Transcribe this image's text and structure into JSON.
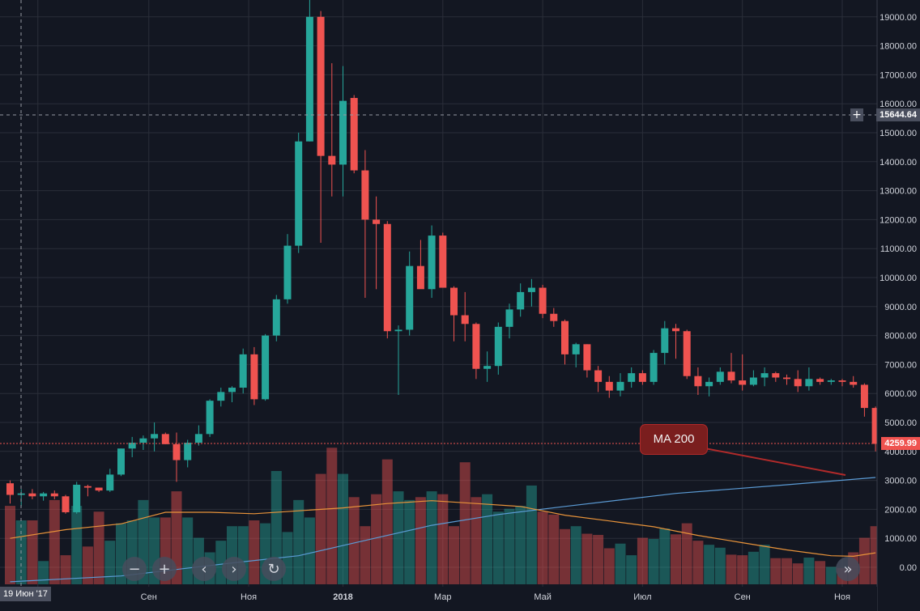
{
  "chart_data": {
    "type": "candlestick",
    "interval": "weekly",
    "x_ticks": [
      "Июл",
      "Сен",
      "Ноя",
      "2018",
      "Мар",
      "Май",
      "Июл",
      "Сен",
      "Ноя"
    ],
    "y_ticks": [
      "0.00",
      "1000.00",
      "2000.00",
      "3000.00",
      "4000.00",
      "5000.00",
      "6000.00",
      "7000.00",
      "8000.00",
      "9000.00",
      "10000.00",
      "11000.00",
      "12000.00",
      "13000.00",
      "14000.00",
      "15000.00",
      "16000.00",
      "17000.00",
      "18000.00",
      "19000.00"
    ],
    "ylim": [
      -750,
      20400
    ],
    "candles": [
      [
        2900,
        3000,
        2200,
        2500
      ],
      [
        2500,
        2700,
        2100,
        2550
      ],
      [
        2550,
        2700,
        2350,
        2450
      ],
      [
        2450,
        2600,
        2300,
        2550
      ],
      [
        2550,
        2650,
        2350,
        2450
      ],
      [
        2450,
        2500,
        1850,
        1900
      ],
      [
        1900,
        2950,
        1850,
        2850
      ],
      [
        2800,
        2850,
        2450,
        2750
      ],
      [
        2750,
        2750,
        2600,
        2650
      ],
      [
        2650,
        3400,
        2600,
        3200
      ],
      [
        3200,
        4100,
        3150,
        4100
      ],
      [
        4100,
        4500,
        3800,
        4300
      ],
      [
        4300,
        4550,
        4050,
        4450
      ],
      [
        4450,
        5000,
        4000,
        4600
      ],
      [
        4600,
        4650,
        4250,
        4250
      ],
      [
        4250,
        4650,
        2950,
        3700
      ],
      [
        3700,
        4400,
        3450,
        4300
      ],
      [
        4300,
        4900,
        4200,
        4600
      ],
      [
        4600,
        5800,
        4500,
        5750
      ],
      [
        5750,
        6200,
        5550,
        6050
      ],
      [
        6050,
        6250,
        5700,
        6200
      ],
      [
        6200,
        7550,
        6000,
        7350
      ],
      [
        7350,
        7600,
        5600,
        5800
      ],
      [
        5800,
        8050,
        5750,
        8000
      ],
      [
        8000,
        9400,
        7800,
        9250
      ],
      [
        9250,
        11500,
        9100,
        11100
      ],
      [
        11100,
        15000,
        10850,
        14700
      ],
      [
        14700,
        19750,
        14700,
        19000
      ],
      [
        19000,
        19200,
        11200,
        14200
      ],
      [
        14200,
        17400,
        12800,
        13900
      ],
      [
        13900,
        17300,
        12800,
        16100
      ],
      [
        16200,
        16300,
        13600,
        13700
      ],
      [
        13700,
        14400,
        9300,
        12000
      ],
      [
        12000,
        12800,
        9600,
        11850
      ],
      [
        11850,
        11950,
        7900,
        8150
      ],
      [
        8150,
        8350,
        5950,
        8200
      ],
      [
        8200,
        10900,
        8000,
        10400
      ],
      [
        10400,
        11300,
        9700,
        9600
      ],
      [
        9600,
        11800,
        9300,
        11450
      ],
      [
        11450,
        11550,
        9700,
        9650
      ],
      [
        9650,
        9700,
        7800,
        8700
      ],
      [
        8700,
        9500,
        7800,
        8400
      ],
      [
        8400,
        8450,
        6500,
        6850
      ],
      [
        6850,
        7450,
        6400,
        6950
      ],
      [
        6950,
        8450,
        6650,
        8300
      ],
      [
        8300,
        9100,
        7900,
        8900
      ],
      [
        8900,
        9800,
        8650,
        9500
      ],
      [
        9500,
        9950,
        9000,
        9650
      ],
      [
        9650,
        9750,
        8600,
        8750
      ],
      [
        8750,
        8950,
        8300,
        8500
      ],
      [
        8500,
        8550,
        7000,
        7350
      ],
      [
        7350,
        7750,
        6900,
        7700
      ],
      [
        7700,
        7700,
        6550,
        6800
      ],
      [
        6800,
        6950,
        6050,
        6400
      ],
      [
        6400,
        6600,
        5850,
        6100
      ],
      [
        6100,
        6700,
        5900,
        6400
      ],
      [
        6400,
        6900,
        6200,
        6700
      ],
      [
        6700,
        6800,
        6300,
        6400
      ],
      [
        6400,
        7500,
        6300,
        7400
      ],
      [
        7400,
        8500,
        7000,
        8250
      ],
      [
        8250,
        8400,
        7200,
        8150
      ],
      [
        8150,
        8200,
        6500,
        6600
      ],
      [
        6600,
        6900,
        5950,
        6250
      ],
      [
        6250,
        6550,
        5900,
        6400
      ],
      [
        6400,
        6900,
        6300,
        6750
      ],
      [
        6750,
        7400,
        6350,
        6450
      ],
      [
        6450,
        7350,
        6100,
        6300
      ],
      [
        6300,
        6800,
        6250,
        6550
      ],
      [
        6550,
        6900,
        6250,
        6700
      ],
      [
        6700,
        6750,
        6400,
        6550
      ],
      [
        6550,
        6650,
        6300,
        6500
      ],
      [
        6500,
        6800,
        6050,
        6250
      ],
      [
        6250,
        6900,
        6100,
        6500
      ],
      [
        6500,
        6550,
        6300,
        6400
      ],
      [
        6400,
        6500,
        6300,
        6450
      ],
      [
        6450,
        6500,
        6250,
        6400
      ],
      [
        6400,
        6600,
        6200,
        6300
      ],
      [
        6300,
        6350,
        5200,
        5500
      ],
      [
        5500,
        5550,
        4000,
        4260
      ]
    ],
    "volume": [
      1350,
      1100,
      1100,
      400,
      1450,
      500,
      1350,
      650,
      1250,
      750,
      1050,
      1100,
      1450,
      1150,
      1150,
      1600,
      1150,
      800,
      550,
      750,
      1000,
      1000,
      1100,
      1050,
      1950,
      900,
      1450,
      1150,
      1900,
      2350,
      1900,
      1500,
      1000,
      1550,
      2150,
      1600,
      1450,
      1500,
      1600,
      1550,
      1000,
      2100,
      1500,
      1550,
      1250,
      1300,
      1350,
      1700,
      1250,
      1200,
      950,
      1000,
      870,
      850,
      620,
      700,
      500,
      800,
      780,
      960,
      860,
      1050,
      750,
      680,
      630,
      510,
      500,
      560,
      680,
      450,
      450,
      360,
      460,
      400,
      300,
      280,
      550,
      800,
      1000
    ]
  },
  "ma200": {
    "label": "MA 200",
    "points": [
      [
        0,
        -500
      ],
      [
        10,
        -300
      ],
      [
        20,
        150
      ],
      [
        26,
        400
      ],
      [
        30,
        750
      ],
      [
        34,
        1100
      ],
      [
        38,
        1450
      ],
      [
        44,
        1820
      ],
      [
        50,
        2100
      ],
      [
        60,
        2550
      ],
      [
        70,
        2850
      ],
      [
        78,
        3100
      ]
    ]
  },
  "ma_short": {
    "points": [
      [
        0,
        1000
      ],
      [
        5,
        1300
      ],
      [
        10,
        1500
      ],
      [
        14,
        1900
      ],
      [
        18,
        1900
      ],
      [
        22,
        1850
      ],
      [
        26,
        1950
      ],
      [
        30,
        2050
      ],
      [
        34,
        2200
      ],
      [
        38,
        2300
      ],
      [
        42,
        2200
      ],
      [
        46,
        2100
      ],
      [
        50,
        1800
      ],
      [
        54,
        1600
      ],
      [
        58,
        1400
      ],
      [
        62,
        1100
      ],
      [
        66,
        850
      ],
      [
        70,
        600
      ],
      [
        74,
        400
      ],
      [
        76,
        380
      ],
      [
        78,
        500
      ]
    ]
  },
  "last_price": "4259.99",
  "crosshair_price": "15644.64",
  "crosshair_date": "19 Июн '17",
  "colors": {
    "up": "#26a69a",
    "down": "#ef5350",
    "background": "#131722",
    "grid": "#2a2e39",
    "ma200": "#5b9bd5",
    "ma_short": "#e8933a"
  },
  "controls": {
    "zoom_out": "−",
    "zoom_in": "+",
    "scroll_left": "‹",
    "scroll_right": "›",
    "reset": "↻",
    "go_latest": "»"
  }
}
